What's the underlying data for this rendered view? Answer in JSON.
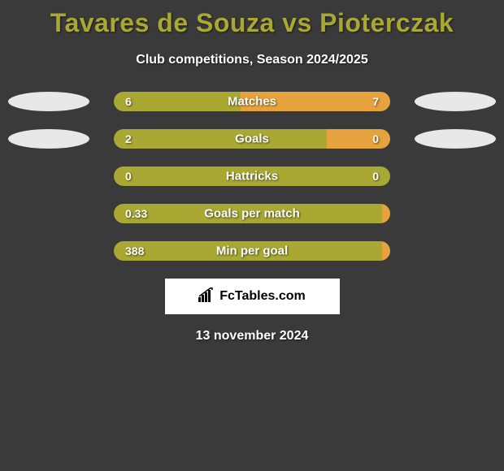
{
  "title": "Tavares de Souza vs Pioterczak",
  "subtitle": "Club competitions, Season 2024/2025",
  "date_text": "13 november 2024",
  "logo_text": "FcTables.com",
  "colors": {
    "background": "#3a3a3a",
    "title": "#a8a833",
    "text": "#ffffff",
    "bar_left": "#a8a833",
    "bar_right": "#e6a23c",
    "ellipse": "#e8e8e8",
    "logo_bg": "#ffffff"
  },
  "rows": [
    {
      "label": "Matches",
      "left_val": "6",
      "right_val": "7",
      "left_pct": 46,
      "right_pct": 54,
      "left_color": "#a8a833",
      "right_color": "#e6a23c",
      "show_ellipses": true
    },
    {
      "label": "Goals",
      "left_val": "2",
      "right_val": "0",
      "left_pct": 77,
      "right_pct": 23,
      "left_color": "#a8a833",
      "right_color": "#e6a23c",
      "show_ellipses": true
    },
    {
      "label": "Hattricks",
      "left_val": "0",
      "right_val": "0",
      "left_pct": 100,
      "right_pct": 0,
      "left_color": "#a8a833",
      "right_color": "#e6a23c",
      "show_ellipses": false
    },
    {
      "label": "Goals per match",
      "left_val": "0.33",
      "right_val": "",
      "left_pct": 97,
      "right_pct": 3,
      "left_color": "#a8a833",
      "right_color": "#e6a23c",
      "show_ellipses": false
    },
    {
      "label": "Min per goal",
      "left_val": "388",
      "right_val": "",
      "left_pct": 97,
      "right_pct": 3,
      "left_color": "#a8a833",
      "right_color": "#e6a23c",
      "show_ellipses": false
    }
  ]
}
